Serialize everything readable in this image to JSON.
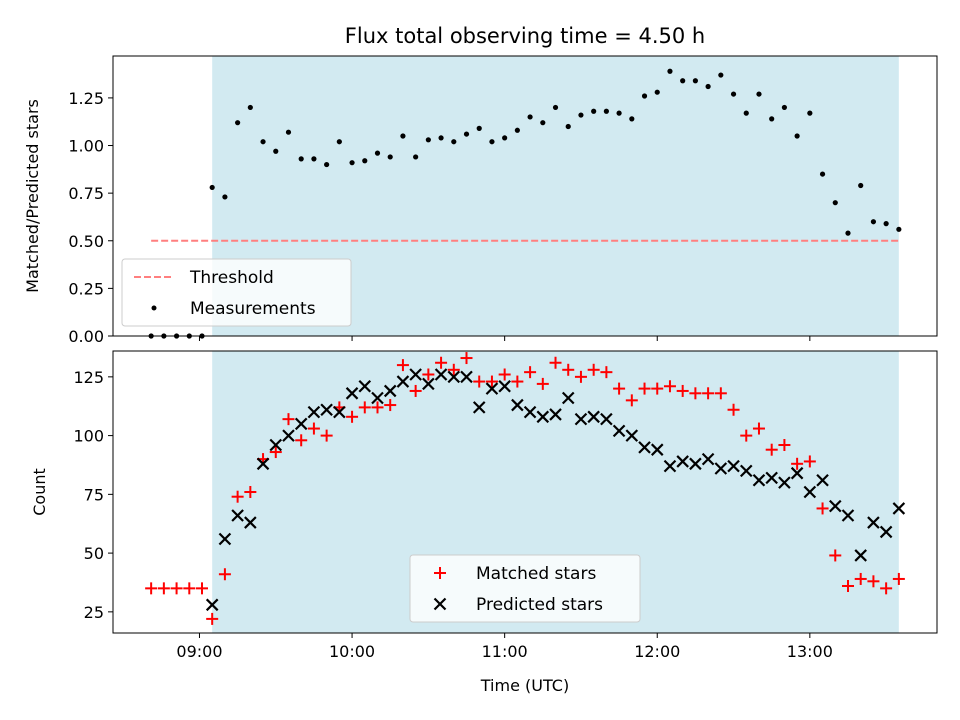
{
  "title": "Flux total observing time = 4.50 h",
  "colors": {
    "shade": "#add8e6",
    "threshold": "#ff7f7f",
    "matched": "#ff0000",
    "predicted": "#000000",
    "measurement": "#000000"
  },
  "chart_data": [
    {
      "type": "scatter",
      "panel": "top",
      "ylabel": "Matched/Predicted stars",
      "xlabel": "",
      "xlim": [
        "08:26",
        "13:50"
      ],
      "ylim": [
        0,
        1.47
      ],
      "yticks": [
        0.0,
        0.25,
        0.5,
        0.75,
        1.0,
        1.25
      ],
      "ytick_labels": [
        "0.00",
        "0.25",
        "0.50",
        "0.75",
        "1.00",
        "1.25"
      ],
      "shaded_span": [
        "09:05",
        "13:35"
      ],
      "legend_position": "lower-left",
      "threshold": {
        "name": "Threshold",
        "value": 0.5,
        "x": [
          "08:41",
          "13:35"
        ]
      },
      "measurements": {
        "name": "Measurements",
        "x": [
          "08:41",
          "08:46",
          "08:51",
          "08:56",
          "09:01",
          "09:05",
          "09:10",
          "09:15",
          "09:20",
          "09:25",
          "09:30",
          "09:35",
          "09:40",
          "09:45",
          "09:50",
          "09:55",
          "10:00",
          "10:05",
          "10:10",
          "10:15",
          "10:20",
          "10:25",
          "10:30",
          "10:35",
          "10:40",
          "10:45",
          "10:50",
          "10:55",
          "11:00",
          "11:05",
          "11:10",
          "11:15",
          "11:20",
          "11:25",
          "11:30",
          "11:35",
          "11:40",
          "11:45",
          "11:50",
          "11:55",
          "12:00",
          "12:05",
          "12:10",
          "12:15",
          "12:20",
          "12:25",
          "12:30",
          "12:35",
          "12:40",
          "12:45",
          "12:50",
          "12:55",
          "13:00",
          "13:05",
          "13:10",
          "13:15",
          "13:20",
          "13:25",
          "13:30",
          "13:35"
        ],
        "y": [
          0.0,
          0.0,
          0.0,
          0.0,
          0.0,
          0.78,
          0.73,
          1.12,
          1.2,
          1.02,
          0.97,
          1.07,
          0.93,
          0.93,
          0.9,
          1.02,
          0.91,
          0.92,
          0.96,
          0.94,
          1.05,
          0.94,
          1.03,
          1.04,
          1.02,
          1.06,
          1.09,
          1.02,
          1.04,
          1.08,
          1.15,
          1.12,
          1.2,
          1.1,
          1.16,
          1.18,
          1.18,
          1.17,
          1.14,
          1.26,
          1.28,
          1.39,
          1.34,
          1.34,
          1.31,
          1.37,
          1.27,
          1.17,
          1.27,
          1.14,
          1.2,
          1.05,
          1.17,
          0.85,
          0.7,
          0.54,
          0.79,
          0.6,
          0.59,
          0.56
        ]
      }
    },
    {
      "type": "scatter",
      "panel": "bottom",
      "ylabel": "Count",
      "xlabel": "Time (UTC)",
      "xlim": [
        "08:26",
        "13:50"
      ],
      "ylim": [
        16,
        136
      ],
      "yticks": [
        25,
        50,
        75,
        100,
        125
      ],
      "ytick_labels": [
        "25",
        "50",
        "75",
        "100",
        "125"
      ],
      "xticks": [
        "09:00",
        "10:00",
        "11:00",
        "12:00",
        "13:00"
      ],
      "xtick_labels": [
        "09:00",
        "10:00",
        "11:00",
        "12:00",
        "13:00"
      ],
      "shaded_span": [
        "09:05",
        "13:35"
      ],
      "legend_position": "lower-center",
      "series": [
        {
          "name": "Matched stars",
          "marker": "plus",
          "x": [
            "08:41",
            "08:46",
            "08:51",
            "08:56",
            "09:01",
            "09:05",
            "09:10",
            "09:15",
            "09:20",
            "09:25",
            "09:30",
            "09:35",
            "09:40",
            "09:45",
            "09:50",
            "09:55",
            "10:00",
            "10:05",
            "10:10",
            "10:15",
            "10:20",
            "10:25",
            "10:30",
            "10:35",
            "10:40",
            "10:45",
            "10:50",
            "10:55",
            "11:00",
            "11:05",
            "11:10",
            "11:15",
            "11:20",
            "11:25",
            "11:30",
            "11:35",
            "11:40",
            "11:45",
            "11:50",
            "11:55",
            "12:00",
            "12:05",
            "12:10",
            "12:15",
            "12:20",
            "12:25",
            "12:30",
            "12:35",
            "12:40",
            "12:45",
            "12:50",
            "12:55",
            "13:00",
            "13:05",
            "13:10",
            "13:15",
            "13:20",
            "13:25",
            "13:30",
            "13:35"
          ],
          "y": [
            35,
            35,
            35,
            35,
            35,
            22,
            41,
            74,
            76,
            90,
            93,
            107,
            98,
            103,
            100,
            112,
            108,
            112,
            112,
            113,
            130,
            119,
            126,
            131,
            128,
            133,
            123,
            123,
            126,
            123,
            127,
            122,
            131,
            128,
            125,
            128,
            127,
            120,
            115,
            120,
            120,
            121,
            119,
            118,
            118,
            118,
            111,
            100,
            103,
            94,
            96,
            88,
            89,
            69,
            49,
            36,
            39,
            38,
            35,
            39
          ]
        },
        {
          "name": "Predicted stars",
          "marker": "x",
          "x": [
            "09:05",
            "09:10",
            "09:15",
            "09:20",
            "09:25",
            "09:30",
            "09:35",
            "09:40",
            "09:45",
            "09:50",
            "09:55",
            "10:00",
            "10:05",
            "10:10",
            "10:15",
            "10:20",
            "10:25",
            "10:30",
            "10:35",
            "10:40",
            "10:45",
            "10:50",
            "10:55",
            "11:00",
            "11:05",
            "11:10",
            "11:15",
            "11:20",
            "11:25",
            "11:30",
            "11:35",
            "11:40",
            "11:45",
            "11:50",
            "11:55",
            "12:00",
            "12:05",
            "12:10",
            "12:15",
            "12:20",
            "12:25",
            "12:30",
            "12:35",
            "12:40",
            "12:45",
            "12:50",
            "12:55",
            "13:00",
            "13:05",
            "13:10",
            "13:15",
            "13:20",
            "13:25",
            "13:30",
            "13:35"
          ],
          "y": [
            28,
            56,
            66,
            63,
            88,
            96,
            100,
            105,
            110,
            111,
            110,
            118,
            121,
            116,
            119,
            123,
            126,
            122,
            126,
            125,
            125,
            112,
            120,
            121,
            113,
            110,
            108,
            109,
            116,
            107,
            108,
            107,
            102,
            100,
            95,
            94,
            87,
            89,
            88,
            90,
            86,
            87,
            85,
            81,
            82,
            80,
            84,
            76,
            81,
            70,
            66,
            49,
            63,
            59,
            69
          ]
        }
      ]
    }
  ]
}
